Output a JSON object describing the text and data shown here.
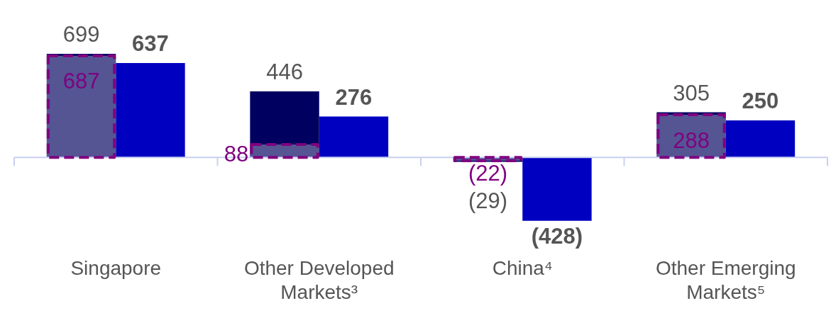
{
  "chart_data": {
    "type": "bar",
    "categories": [
      "Singapore",
      "Other Developed Markets³",
      "China⁴",
      "Other Emerging Markets⁵"
    ],
    "series": [
      {
        "color": "#000060",
        "values": [
          699,
          446,
          -29,
          305
        ],
        "value_labels": [
          "699",
          "446",
          "(29)",
          "305"
        ]
      },
      {
        "color": "#0000c0",
        "values": [
          637,
          276,
          -428,
          250
        ],
        "value_labels": [
          "637",
          "276",
          "(428)",
          "250"
        ]
      },
      {
        "color": "#800080",
        "values": [
          687,
          88,
          -22,
          288
        ],
        "value_labels": [
          "687",
          "88",
          "(22)",
          "288"
        ],
        "line_style": "dashed"
      }
    ],
    "tick_labels": "x"
  }
}
